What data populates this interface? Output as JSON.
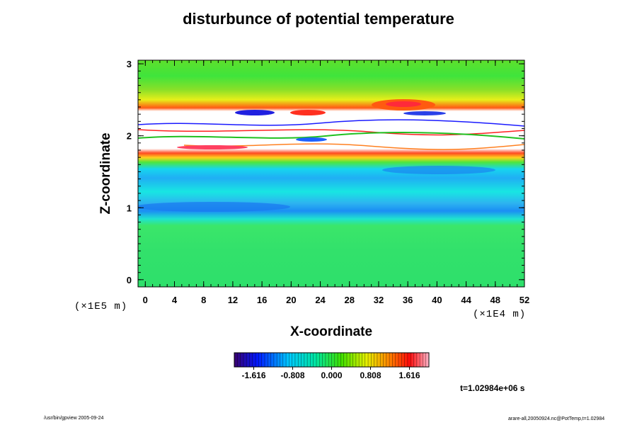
{
  "chart_data": {
    "type": "heatmap",
    "title": "disturbunce of potential temperature",
    "xlabel": "X-coordinate",
    "ylabel": "Z-coordinate",
    "x_unit": "(×1E4 m)",
    "y_unit": "(×1E5 m)",
    "xlim": [
      -1,
      52
    ],
    "ylim": [
      -0.1,
      3.05
    ],
    "x_ticks": [
      0,
      4,
      8,
      12,
      16,
      20,
      24,
      28,
      32,
      36,
      40,
      44,
      48,
      52
    ],
    "y_ticks": [
      0,
      1,
      2,
      3
    ],
    "colorbar": {
      "ticks": [
        -1.616,
        -0.808,
        0.0,
        0.808,
        1.616
      ],
      "tick_labels": [
        "-1.616",
        "-0.808",
        "0.000",
        "0.808",
        "1.616"
      ],
      "range": [
        -2.02,
        2.02
      ],
      "colormap": "rainbow (purple-blue-cyan-green-yellow-red-pink)"
    },
    "layers": [
      {
        "z_range": [
          -0.1,
          0.95
        ],
        "value": 0.1,
        "description": "near zero, light green"
      },
      {
        "z_range": [
          0.95,
          1.6
        ],
        "value": -0.8,
        "description": "negative, cyan to blue bands"
      },
      {
        "z_range": [
          1.6,
          1.75
        ],
        "value": 1.9,
        "description": "strong positive red/pink band"
      },
      {
        "z_range": [
          1.75,
          2.35
        ],
        "value": null,
        "description": "out-of-range white region with thin colored streaks"
      },
      {
        "z_range": [
          2.35,
          2.5
        ],
        "value": 1.7,
        "description": "red/orange band"
      },
      {
        "z_range": [
          2.5,
          3.05
        ],
        "value": 0.5,
        "description": "green to yellow-green"
      }
    ]
  },
  "time_label": "t=1.02984e+06 s",
  "footer_left": "/usr/bin/gpview 2005-09-24",
  "footer_right": "arare-all,20050924.nc@PotTemp,t=1.02984",
  "colors": {
    "frame": "#000000",
    "background": "#ffffff"
  }
}
